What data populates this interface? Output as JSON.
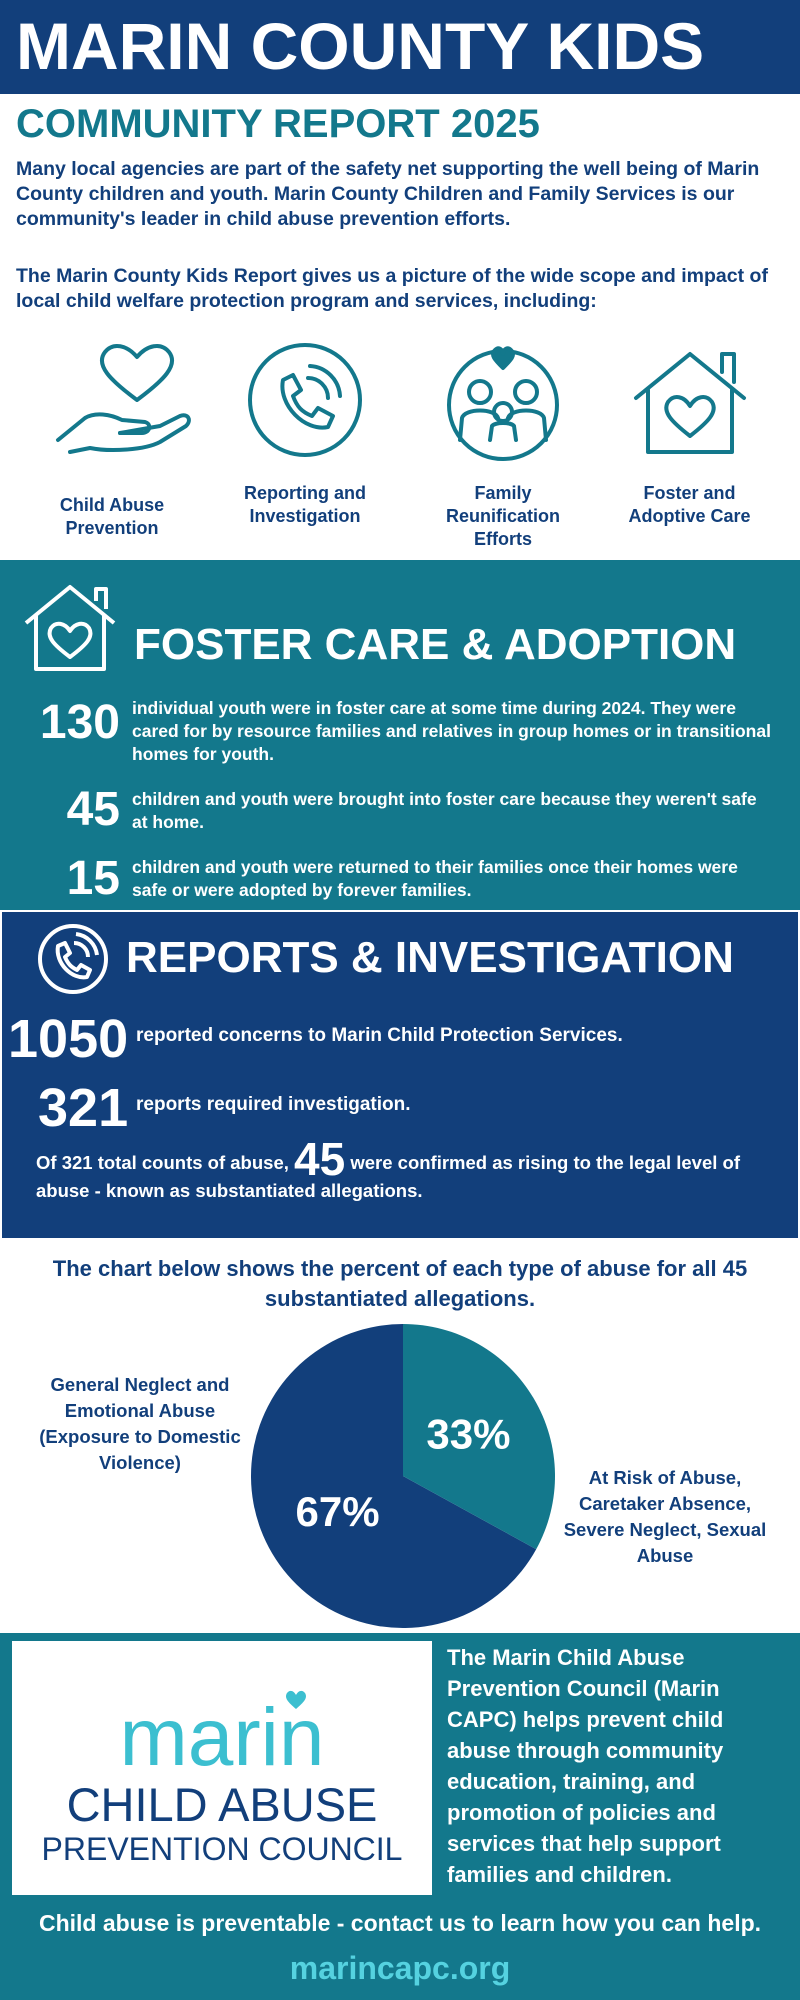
{
  "header": {
    "title": "MARIN COUNTY KIDS",
    "subtitle": "COMMUNITY REPORT 2025",
    "intro": [
      "Many local agencies are part of the safety net supporting the well being of Marin County children and youth. Marin County Children and Family Services is our community's leader in child abuse prevention efforts.",
      "The Marin County Kids Report gives us a picture of the wide scope and impact of local child welfare protection program and services, including:"
    ]
  },
  "services": [
    "Child Abuse Prevention",
    "Reporting and Investigation",
    "Family Reunification Efforts",
    "Foster and Adoptive Care"
  ],
  "foster": {
    "heading": "FOSTER CARE & ADOPTION",
    "stats": [
      {
        "number": 130,
        "text": "individual youth were in foster care at some time during 2024. They were cared for by resource families and relatives in group homes or in transitional homes for youth."
      },
      {
        "number": 45,
        "text": "children and youth were brought into foster care because they weren't safe at home."
      },
      {
        "number": 15,
        "text": "children and youth were returned to their families once their homes were safe or were adopted by forever families."
      }
    ]
  },
  "reports": {
    "heading": "REPORTS & INVESTIGATION",
    "stats": [
      {
        "number": 1050,
        "text": "reported concerns to Marin Child Protection Services."
      },
      {
        "number": 321,
        "text": "reports required investigation."
      }
    ],
    "substantiated": {
      "prefix": "Of 321 total counts of abuse,",
      "number": 45,
      "suffix": "were confirmed as rising to the legal level of abuse - known as substantiated allegations."
    }
  },
  "chart_data": {
    "type": "pie",
    "title": "The chart below shows the percent of each type of abuse for all 45 substantiated allegations.",
    "categories": [
      "General Neglect and Emotional Abuse (Exposure to Domestic Violence)",
      "At Risk of Abuse, Caretaker Absence, Severe Neglect, Sexual Abuse"
    ],
    "values": [
      67,
      33
    ],
    "value_labels": [
      "67%",
      "33%"
    ],
    "colors": [
      "#123f7b",
      "#13788c"
    ]
  },
  "footer": {
    "logo": {
      "word": "marin",
      "line1": "CHILD ABUSE",
      "line2": "PREVENTION COUNCIL"
    },
    "description": "The Marin Child Abuse Prevention Council (Marin CAPC) helps prevent child abuse through community education, training, and promotion of policies and services that help support families and children.",
    "cta": "Child abuse is preventable - contact us to learn how you can help.",
    "url": "marincapc.org"
  }
}
